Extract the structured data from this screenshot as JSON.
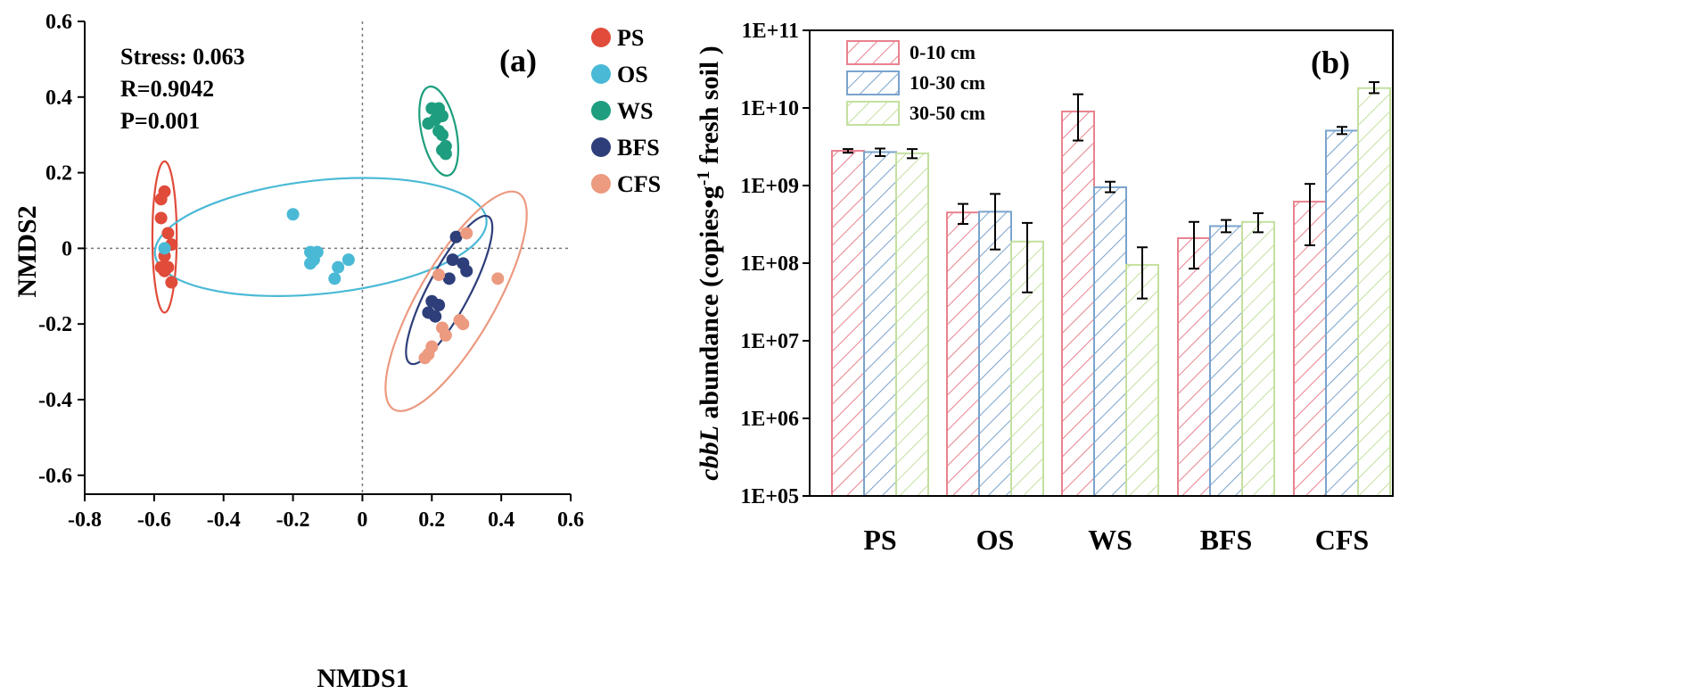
{
  "chart_data": [
    {
      "type": "scatter",
      "panel_label": "(a)",
      "xlabel": "NMDS1",
      "ylabel": "NMDS2",
      "xlim": [
        -0.8,
        0.6
      ],
      "ylim": [
        -0.65,
        0.6
      ],
      "xticks": [
        "-0.8",
        "-0.6",
        "-0.4",
        "-0.2",
        "0",
        "0.2",
        "0.4",
        "0.6"
      ],
      "yticks": [
        "0.6",
        "0.4",
        "0.2",
        "0",
        "-0.2",
        "-0.4",
        "-0.6"
      ],
      "stats": [
        "Stress: 0.063",
        "R=0.9042",
        "P=0.001"
      ],
      "series": [
        {
          "name": "PS",
          "color": "#e04b3a",
          "points": [
            [
              -0.57,
              0.15
            ],
            [
              -0.58,
              0.13
            ],
            [
              -0.58,
              0.08
            ],
            [
              -0.56,
              0.04
            ],
            [
              -0.55,
              0.01
            ],
            [
              -0.57,
              -0.02
            ],
            [
              -0.58,
              -0.05
            ],
            [
              -0.56,
              -0.05
            ],
            [
              -0.57,
              -0.06
            ],
            [
              -0.55,
              -0.09
            ]
          ],
          "ellipse": {
            "cx": -0.57,
            "cy": 0.03,
            "rx": 0.035,
            "ry": 0.2,
            "angle": 0
          }
        },
        {
          "name": "OS",
          "color": "#4ab9d6",
          "points": [
            [
              -0.2,
              0.09
            ],
            [
              -0.57,
              0.0
            ],
            [
              -0.13,
              -0.01
            ],
            [
              -0.15,
              -0.01
            ],
            [
              -0.14,
              -0.03
            ],
            [
              -0.15,
              -0.04
            ],
            [
              -0.04,
              -0.03
            ],
            [
              -0.07,
              -0.05
            ],
            [
              -0.08,
              -0.08
            ]
          ],
          "ellipse": {
            "cx": -0.12,
            "cy": 0.03,
            "rx": 0.48,
            "ry": 0.15,
            "angle": -6
          }
        },
        {
          "name": "WS",
          "color": "#1e9e7e",
          "points": [
            [
              0.2,
              0.37
            ],
            [
              0.22,
              0.37
            ],
            [
              0.23,
              0.35
            ],
            [
              0.21,
              0.34
            ],
            [
              0.19,
              0.33
            ],
            [
              0.22,
              0.31
            ],
            [
              0.23,
              0.3
            ],
            [
              0.24,
              0.27
            ],
            [
              0.23,
              0.26
            ],
            [
              0.24,
              0.25
            ]
          ],
          "ellipse": {
            "cx": 0.22,
            "cy": 0.31,
            "rx": 0.05,
            "ry": 0.12,
            "angle": -12
          }
        },
        {
          "name": "BFS",
          "color": "#2d3e7a",
          "points": [
            [
              0.27,
              0.03
            ],
            [
              0.26,
              -0.03
            ],
            [
              0.29,
              -0.04
            ],
            [
              0.3,
              -0.06
            ],
            [
              0.25,
              -0.08
            ],
            [
              0.2,
              -0.14
            ],
            [
              0.22,
              -0.15
            ],
            [
              0.19,
              -0.17
            ],
            [
              0.21,
              -0.18
            ]
          ],
          "ellipse": {
            "cx": 0.25,
            "cy": -0.11,
            "rx": 0.06,
            "ry": 0.22,
            "angle": 28
          }
        },
        {
          "name": "CFS",
          "color": "#ec9a80",
          "points": [
            [
              0.3,
              0.04
            ],
            [
              0.22,
              -0.07
            ],
            [
              0.39,
              -0.08
            ],
            [
              0.28,
              -0.19
            ],
            [
              0.29,
              -0.2
            ],
            [
              0.23,
              -0.21
            ],
            [
              0.24,
              -0.23
            ],
            [
              0.2,
              -0.26
            ],
            [
              0.19,
              -0.28
            ],
            [
              0.18,
              -0.29
            ]
          ],
          "ellipse": {
            "cx": 0.27,
            "cy": -0.14,
            "rx": 0.11,
            "ry": 0.33,
            "angle": 30
          }
        }
      ]
    },
    {
      "type": "bar",
      "panel_label": "(b)",
      "scale": "log",
      "ylabel_italic": "cbbL",
      "ylabel_rest": " abundance (copies•g",
      "ylabel_sup": "-1",
      "ylabel_end": " fresh soil )",
      "ylim": [
        100000,
        100000000000
      ],
      "yticks": [
        "1E+11",
        "1E+10",
        "1E+09",
        "1E+08",
        "1E+07",
        "1E+06",
        "1E+05"
      ],
      "categories": [
        "PS",
        "OS",
        "WS",
        "BFS",
        "CFS"
      ],
      "series": [
        {
          "name": "0-10 cm",
          "color": "#e8828e",
          "values": [
            2800000000,
            450000000,
            9000000000,
            210000000,
            620000000
          ],
          "err_low": [
            2650000000,
            320000000,
            3800000000,
            85000000,
            170000000
          ],
          "err_high": [
            2950000000,
            580000000,
            15000000000,
            340000000,
            1050000000
          ]
        },
        {
          "name": "10-30 cm",
          "color": "#7aa3cc",
          "values": [
            2700000000,
            460000000,
            950000000,
            300000000,
            5100000000
          ],
          "err_low": [
            2400000000,
            150000000,
            820000000,
            250000000,
            4600000000
          ],
          "err_high": [
            3000000000,
            780000000,
            1120000000,
            360000000,
            5700000000
          ]
        },
        {
          "name": "30-50 cm",
          "color": "#c4e0a0",
          "values": [
            2600000000,
            190000000,
            95000000,
            340000000,
            18000000000
          ],
          "err_low": [
            2250000000,
            42000000,
            35000000,
            250000000,
            15500000000
          ],
          "err_high": [
            2950000000,
            330000000,
            160000000,
            440000000,
            21500000000
          ]
        }
      ]
    }
  ]
}
